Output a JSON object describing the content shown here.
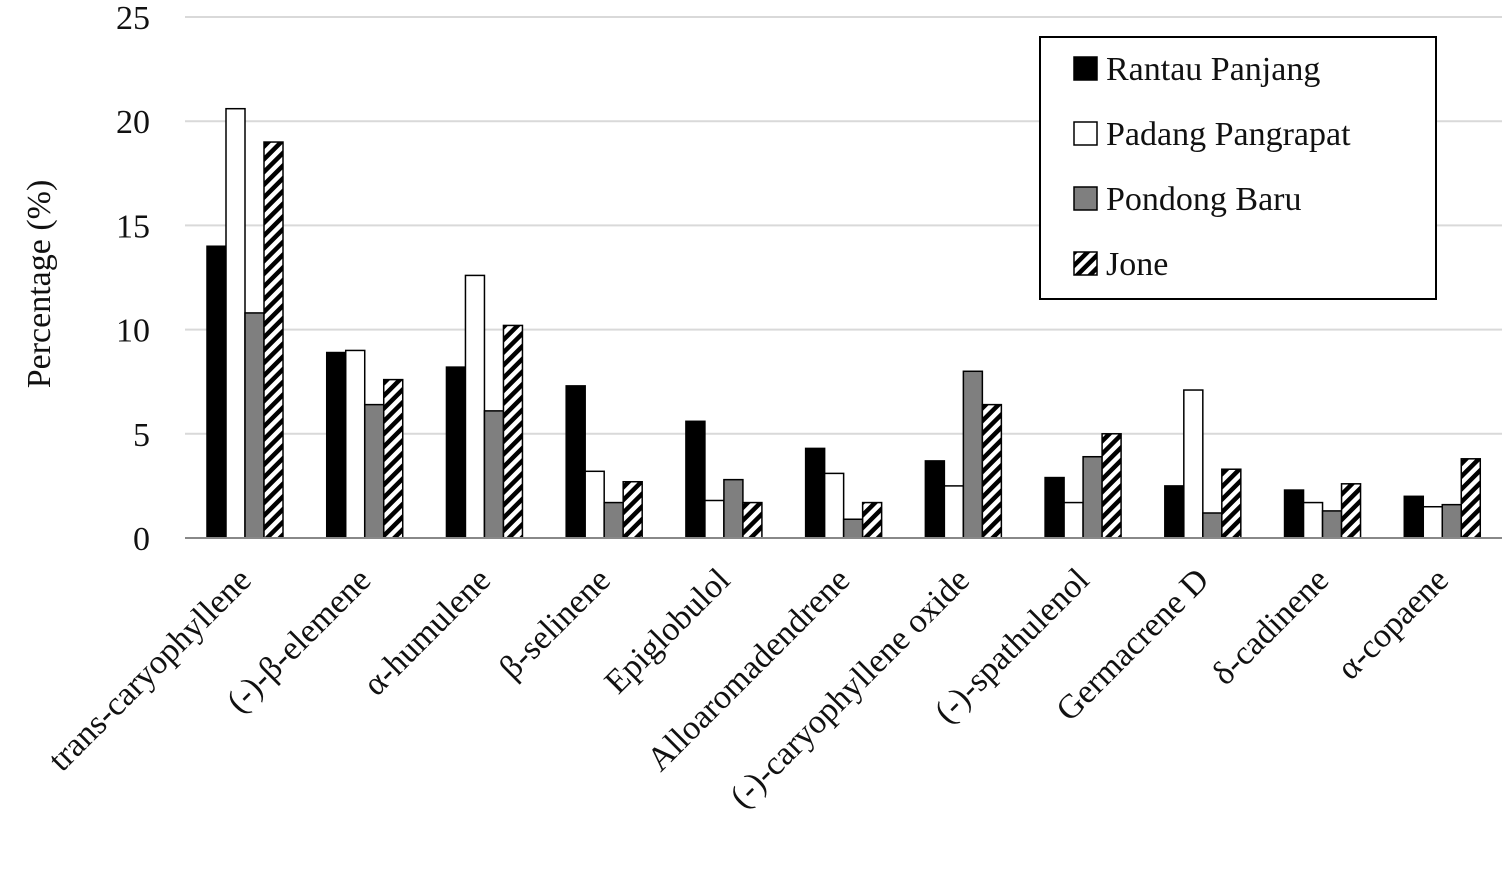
{
  "chart_data": {
    "type": "bar",
    "title": "",
    "xlabel": "",
    "ylabel": "Percentage  (%)",
    "ylim": [
      0,
      25
    ],
    "yticks": [
      "0",
      "5",
      "10",
      "15",
      "20",
      "25"
    ],
    "grid": "horizontal",
    "legend_position": "top-right",
    "categories": [
      "trans-caryophyllene",
      "(-)-β-elemene",
      "α-humulene",
      "β-selinene",
      "Epiglobulol",
      "Alloaromadendrene",
      "(-)-caryophyllene oxide",
      "(-)-spathulenol",
      "Germacrene D",
      "δ-cadinene",
      "α-copaene"
    ],
    "series": [
      {
        "name": "Rantau Panjang",
        "style": "solid-black",
        "values": [
          14.0,
          8.9,
          8.2,
          7.3,
          5.6,
          4.3,
          3.7,
          2.9,
          2.5,
          2.3,
          2.0
        ]
      },
      {
        "name": "Padang Pangrapat",
        "style": "white",
        "values": [
          20.6,
          9.0,
          12.6,
          3.2,
          1.8,
          3.1,
          2.5,
          1.7,
          7.1,
          1.7,
          1.5
        ]
      },
      {
        "name": "Pondong Baru",
        "style": "gray",
        "values": [
          10.8,
          6.4,
          6.1,
          1.7,
          2.8,
          0.9,
          8.0,
          3.9,
          1.2,
          1.3,
          1.6
        ]
      },
      {
        "name": "Jone",
        "style": "hatched",
        "values": [
          19.0,
          7.6,
          10.2,
          2.7,
          1.7,
          1.7,
          6.4,
          5.0,
          3.3,
          2.6,
          3.8
        ]
      }
    ],
    "colors": {
      "Rantau Panjang": "#000000",
      "Padang Pangrapat": "#ffffff",
      "Pondong Baru": "#7f7f7f",
      "Jone": "#ffffff",
      "gridline": "#d9d9d9",
      "outline": "#000000"
    }
  }
}
